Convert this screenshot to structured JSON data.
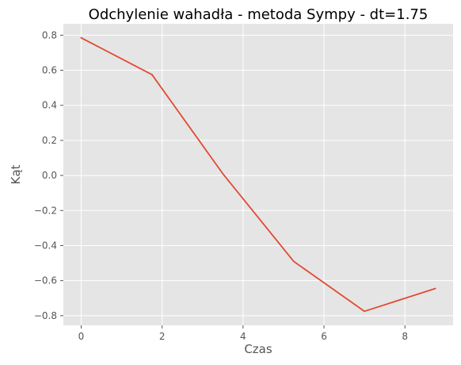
{
  "chart_data": {
    "type": "line",
    "title": "Odchylenie wahadła - metoda Sympy - dt=1.75",
    "xlabel": "Czas",
    "ylabel": "Kąt",
    "xlim": [
      -0.44,
      9.19
    ],
    "ylim": [
      -0.855,
      0.865
    ],
    "xticks": [
      0,
      2,
      4,
      6,
      8
    ],
    "xtick_labels": [
      "0",
      "2",
      "4",
      "6",
      "8"
    ],
    "yticks": [
      -0.8,
      -0.6,
      -0.4,
      -0.2,
      0.0,
      0.2,
      0.4,
      0.6,
      0.8
    ],
    "ytick_labels": [
      "−0.8",
      "−0.6",
      "−0.4",
      "−0.2",
      "0.0",
      "0.2",
      "0.4",
      "0.6",
      "0.8"
    ],
    "grid": true,
    "legend": "none",
    "series": [
      {
        "x": [
          0,
          1.75,
          3.5,
          5.25,
          7.0,
          8.75
        ],
        "y": [
          0.785,
          0.575,
          0.01,
          -0.49,
          -0.775,
          -0.645
        ],
        "color": "#e24a33"
      }
    ],
    "colors": {
      "plot_background": "#e5e5e5",
      "grid": "#ffffff",
      "tick_text": "#555555",
      "title_text": "#000000"
    }
  }
}
